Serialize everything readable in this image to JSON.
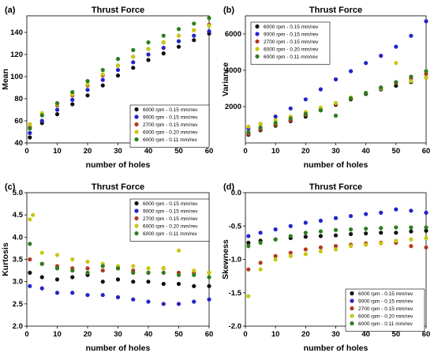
{
  "figure": {
    "legend_entries": [
      {
        "label": "6000 rpm - 0.15 mm/rev",
        "color": "#111111"
      },
      {
        "label": "9000 rpm - 0.15 mm/rev",
        "color": "#2424c8"
      },
      {
        "label": "2700 rpm - 0.15 mm/rev",
        "color": "#b33a1e"
      },
      {
        "label": "6000 rpm - 0.20 mm/rev",
        "color": "#c8c814"
      },
      {
        "label": "6000 rpm - 0.11 mm/rev",
        "color": "#2e7d1e"
      }
    ]
  },
  "chart_data": [
    {
      "panel": "(a)",
      "type": "scatter",
      "title": "Thrust Force",
      "xlabel": "number of holes",
      "ylabel": "Mean",
      "xlim": [
        0,
        60
      ],
      "ylim": [
        40,
        155
      ],
      "xticks": [
        0,
        10,
        20,
        30,
        40,
        50,
        60
      ],
      "yticks": [
        40,
        60,
        80,
        100,
        120,
        140
      ],
      "grid": false,
      "legend_position": "bottom-right",
      "series": [
        {
          "name": "6000 rpm - 0.15 mm/rev",
          "x": [
            1,
            5,
            10,
            15,
            20,
            25,
            30,
            35,
            40,
            45,
            50,
            55,
            60
          ],
          "y": [
            45,
            58,
            66,
            75,
            83,
            92,
            101,
            108,
            115,
            121,
            127,
            133,
            139
          ]
        },
        {
          "name": "9000 rpm - 0.15 mm/rev",
          "x": [
            1,
            5,
            10,
            15,
            20,
            25,
            30,
            35,
            40,
            45,
            50,
            55,
            60
          ],
          "y": [
            49,
            60,
            70,
            79,
            88,
            97,
            106,
            113,
            120,
            126,
            132,
            137,
            141
          ]
        },
        {
          "name": "2700 rpm - 0.15 mm/rev",
          "x": [
            1,
            5,
            10,
            15,
            20,
            25,
            30,
            35,
            40,
            45,
            50,
            55,
            60
          ],
          "y": [
            54,
            65,
            74,
            83,
            92,
            101,
            110,
            118,
            125,
            131,
            137,
            142,
            147
          ]
        },
        {
          "name": "6000 rpm - 0.20 mm/rev",
          "x": [
            1,
            5,
            10,
            15,
            20,
            25,
            30,
            35,
            40,
            45,
            50,
            55,
            60
          ],
          "y": [
            57,
            67,
            75,
            84,
            93,
            102,
            110,
            118,
            125,
            131,
            137,
            142,
            146
          ]
        },
        {
          "name": "6000 rpm - 0.11 mm/rev",
          "x": [
            1,
            5,
            10,
            15,
            20,
            25,
            30,
            35,
            40,
            45,
            50,
            55,
            60
          ],
          "y": [
            53,
            65,
            76,
            86,
            96,
            106,
            116,
            124,
            131,
            137,
            143,
            148,
            153
          ]
        }
      ]
    },
    {
      "panel": "(b)",
      "type": "scatter",
      "title": "Thrust Force",
      "xlabel": "number of holes",
      "ylabel": "Variance",
      "xlim": [
        0,
        60
      ],
      "ylim": [
        0,
        7000
      ],
      "xticks": [
        0,
        10,
        20,
        30,
        40,
        50,
        60
      ],
      "yticks": [
        2000,
        4000,
        6000
      ],
      "grid": false,
      "legend_position": "top-left",
      "series": [
        {
          "name": "6000 rpm - 0.15 mm/rev",
          "x": [
            1,
            5,
            10,
            15,
            20,
            25,
            30,
            35,
            40,
            45,
            50,
            55,
            60
          ],
          "y": [
            450,
            700,
            950,
            1200,
            1450,
            1800,
            2100,
            2400,
            2700,
            2950,
            3150,
            3350,
            3600
          ]
        },
        {
          "name": "9000 rpm - 0.15 mm/rev",
          "x": [
            1,
            5,
            10,
            15,
            20,
            25,
            30,
            35,
            40,
            45,
            50,
            55,
            60
          ],
          "y": [
            800,
            1050,
            1450,
            1900,
            2400,
            2950,
            3500,
            3950,
            4400,
            4800,
            5300,
            5900,
            6700
          ]
        },
        {
          "name": "2700 rpm - 0.15 mm/rev",
          "x": [
            1,
            5,
            10,
            15,
            20,
            25,
            30,
            35,
            40,
            45,
            50,
            55,
            60
          ],
          "y": [
            500,
            750,
            1000,
            1250,
            1550,
            1850,
            2150,
            2450,
            2750,
            3050,
            3300,
            3550,
            3800
          ]
        },
        {
          "name": "6000 rpm - 0.20 mm/rev",
          "x": [
            1,
            5,
            10,
            15,
            20,
            25,
            30,
            35,
            40,
            45,
            50,
            55,
            60
          ],
          "y": [
            900,
            1050,
            1250,
            1450,
            1700,
            1950,
            2200,
            2500,
            2750,
            3000,
            4400,
            3400,
            3600
          ]
        },
        {
          "name": "6000 rpm - 0.11 mm/rev",
          "x": [
            1,
            5,
            10,
            15,
            20,
            25,
            30,
            35,
            40,
            45,
            50,
            55,
            60
          ],
          "y": [
            600,
            850,
            1100,
            1350,
            1600,
            1800,
            1500,
            2450,
            2750,
            3050,
            3350,
            3650,
            3950
          ]
        }
      ]
    },
    {
      "panel": "(c)",
      "type": "scatter",
      "title": "Thrust Force",
      "xlabel": "number of holes",
      "ylabel": "Kurtosis",
      "xlim": [
        0,
        60
      ],
      "ylim": [
        2.0,
        5.0
      ],
      "xticks": [
        0,
        10,
        20,
        30,
        40,
        50,
        60
      ],
      "yticks": [
        2.0,
        2.5,
        3.0,
        3.5,
        4.0,
        4.5,
        5.0
      ],
      "grid": false,
      "legend_position": "top-right",
      "series": [
        {
          "name": "6000 rpm - 0.15 mm/rev",
          "x": [
            1,
            5,
            10,
            15,
            20,
            25,
            30,
            35,
            40,
            45,
            50,
            55,
            60
          ],
          "y": [
            3.2,
            3.1,
            3.05,
            3.1,
            3.15,
            3.0,
            3.05,
            3.0,
            3.0,
            2.95,
            2.95,
            2.9,
            2.9
          ]
        },
        {
          "name": "9000 rpm - 0.15 mm/rev",
          "x": [
            1,
            5,
            10,
            15,
            20,
            25,
            30,
            35,
            40,
            45,
            50,
            55,
            60
          ],
          "y": [
            2.9,
            2.85,
            2.75,
            2.75,
            2.7,
            2.7,
            2.65,
            2.6,
            2.55,
            2.5,
            2.5,
            2.55,
            2.6
          ]
        },
        {
          "name": "2700 rpm - 0.15 mm/rev",
          "x": [
            1,
            5,
            10,
            15,
            20,
            25,
            30,
            35,
            40,
            45,
            50,
            55,
            60
          ],
          "y": [
            3.5,
            3.4,
            3.35,
            3.3,
            3.3,
            3.25,
            3.3,
            3.25,
            3.2,
            3.3,
            3.2,
            3.2,
            3.2
          ]
        },
        {
          "name": "6000 rpm - 0.20 mm/rev",
          "x": [
            1,
            2,
            5,
            10,
            15,
            20,
            25,
            30,
            35,
            40,
            45,
            50,
            55,
            60
          ],
          "y": [
            4.4,
            4.5,
            3.65,
            3.6,
            3.5,
            3.45,
            3.4,
            3.35,
            3.35,
            3.3,
            3.3,
            3.7,
            3.25,
            3.2
          ]
        },
        {
          "name": "6000 rpm - 0.11 mm/rev",
          "x": [
            1,
            5,
            10,
            15,
            20,
            25,
            30,
            35,
            40,
            45,
            50,
            55,
            60
          ],
          "y": [
            3.85,
            3.4,
            3.3,
            3.25,
            3.2,
            3.35,
            3.3,
            3.2,
            3.2,
            3.2,
            3.15,
            3.15,
            3.1
          ]
        }
      ]
    },
    {
      "panel": "(d)",
      "type": "scatter",
      "title": "Thrust Force",
      "xlabel": "number of holes",
      "ylabel": "Skewness",
      "xlim": [
        0,
        60
      ],
      "ylim": [
        -2.0,
        0.0
      ],
      "xticks": [
        0,
        10,
        20,
        30,
        40,
        50,
        60
      ],
      "yticks": [
        -2.0,
        -1.5,
        -1.0,
        -0.5,
        0.0
      ],
      "grid": false,
      "legend_position": "bottom-right",
      "series": [
        {
          "name": "6000 rpm - 0.15 mm/rev",
          "x": [
            1,
            5,
            10,
            15,
            20,
            25,
            30,
            35,
            40,
            45,
            50,
            55,
            60
          ],
          "y": [
            -0.75,
            -0.72,
            -0.7,
            -0.68,
            -0.66,
            -0.65,
            -0.64,
            -0.62,
            -0.61,
            -0.6,
            -0.6,
            -0.58,
            -0.57
          ]
        },
        {
          "name": "9000 rpm - 0.15 mm/rev",
          "x": [
            1,
            5,
            10,
            15,
            20,
            25,
            30,
            35,
            40,
            45,
            50,
            55,
            60
          ],
          "y": [
            -0.65,
            -0.6,
            -0.55,
            -0.5,
            -0.45,
            -0.42,
            -0.38,
            -0.35,
            -0.32,
            -0.3,
            -0.25,
            -0.27,
            -0.3
          ]
        },
        {
          "name": "2700 rpm - 0.15 mm/rev",
          "x": [
            1,
            5,
            10,
            15,
            20,
            25,
            30,
            35,
            40,
            45,
            50,
            55,
            60
          ],
          "y": [
            -1.15,
            -1.05,
            -0.95,
            -0.9,
            -0.85,
            -0.82,
            -0.8,
            -0.78,
            -0.76,
            -0.75,
            -0.75,
            -0.8,
            -0.82
          ]
        },
        {
          "name": "6000 rpm - 0.20 mm/rev",
          "x": [
            1,
            5,
            10,
            15,
            20,
            25,
            30,
            35,
            40,
            45,
            50,
            55,
            60
          ],
          "y": [
            -1.55,
            -1.15,
            -1.0,
            -0.95,
            -0.92,
            -0.88,
            -0.85,
            -0.8,
            -0.78,
            -0.76,
            -0.72,
            -0.7,
            -0.68
          ]
        },
        {
          "name": "6000 rpm - 0.11 mm/rev",
          "x": [
            1,
            5,
            10,
            15,
            20,
            25,
            30,
            35,
            40,
            45,
            50,
            55,
            60
          ],
          "y": [
            -0.8,
            -0.75,
            -0.7,
            -0.65,
            -0.6,
            -0.58,
            -0.56,
            -0.55,
            -0.54,
            -0.53,
            -0.52,
            -0.52,
            -0.52
          ]
        }
      ]
    }
  ]
}
